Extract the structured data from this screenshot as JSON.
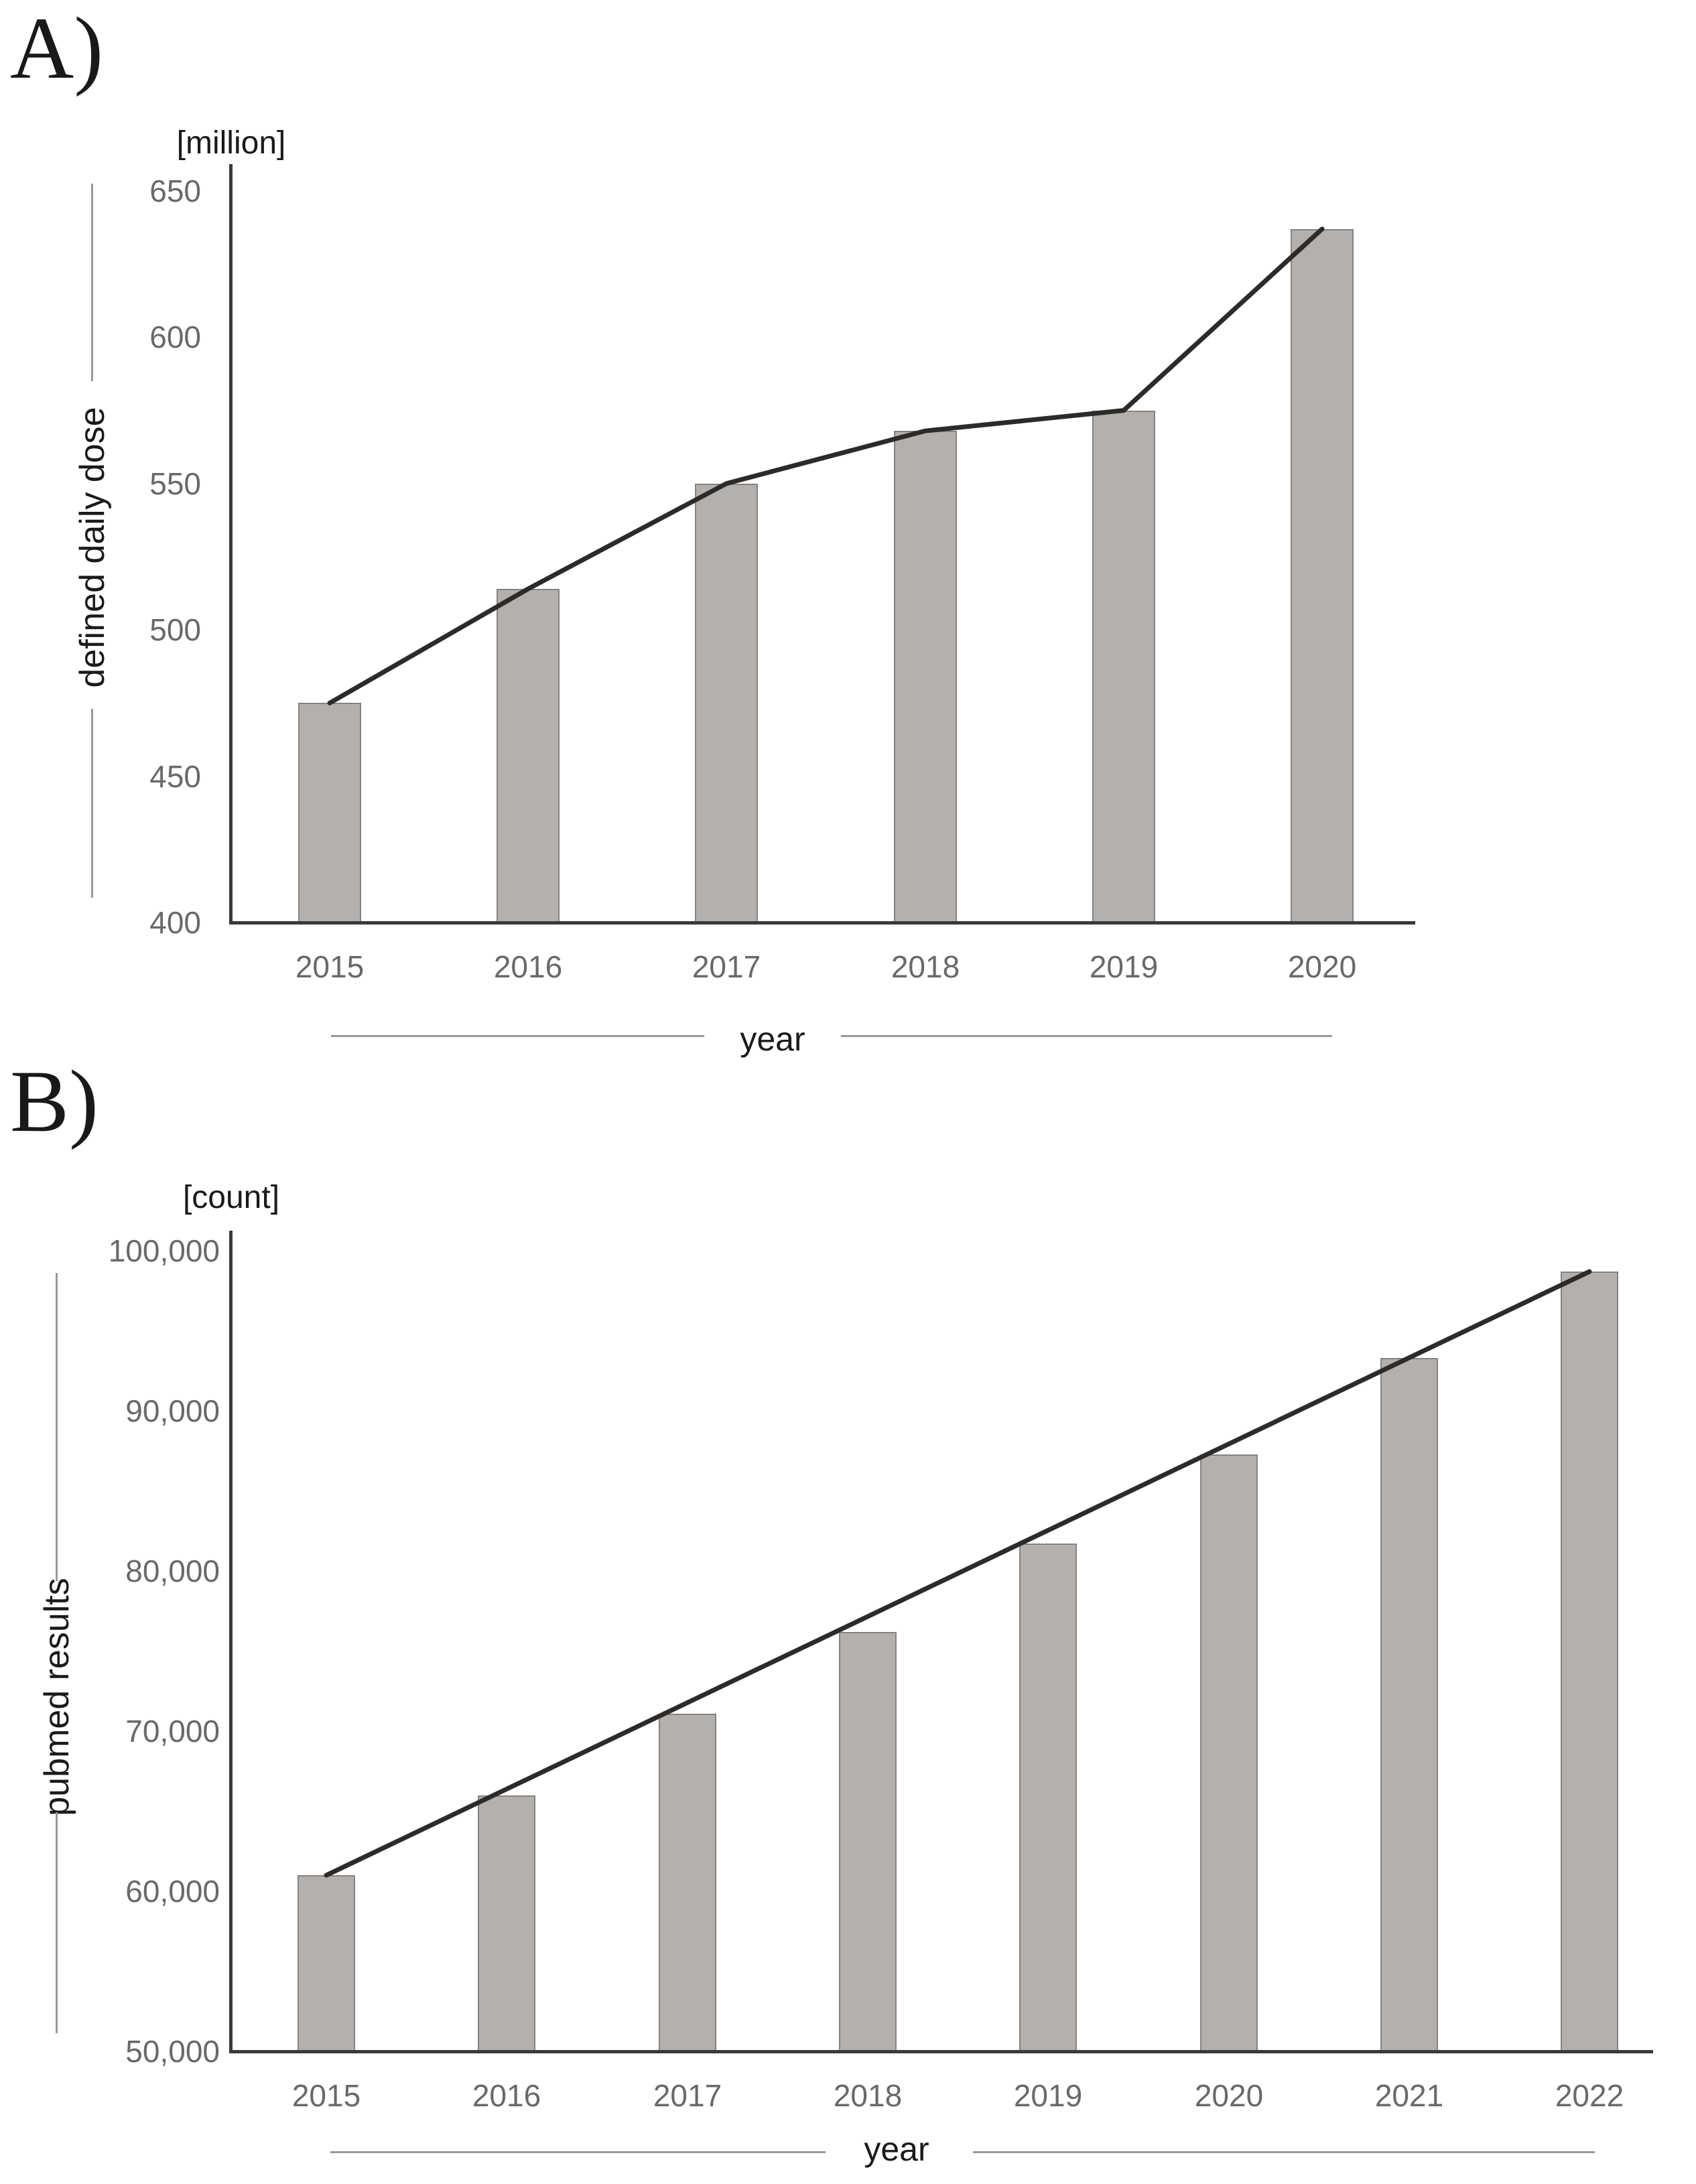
{
  "chart_data": [
    {
      "panel_label": "A)",
      "type": "bar",
      "title": "",
      "unit_label": "[million]",
      "ylabel": "defined daily dose",
      "xlabel": "year",
      "categories": [
        "2015",
        "2016",
        "2017",
        "2018",
        "2019",
        "2020"
      ],
      "series": [
        {
          "name": "defined daily dose bars",
          "values": [
            475,
            514,
            550,
            568,
            575,
            637
          ]
        },
        {
          "name": "trend line",
          "values": [
            475,
            514,
            550,
            568,
            575,
            637
          ]
        }
      ],
      "values": [
        475,
        514,
        550,
        568,
        575,
        637
      ],
      "ylim": [
        400,
        650
      ],
      "yticks": [
        400,
        450,
        500,
        550,
        600,
        650
      ],
      "ytick_labels": [
        "400",
        "450",
        "500",
        "550",
        "600",
        "650"
      ],
      "grid": false,
      "legend_position": "none",
      "trend_style": "polyline-through-points"
    },
    {
      "panel_label": "B)",
      "type": "bar",
      "title": "",
      "unit_label": "[count]",
      "ylabel": "pubmed results",
      "xlabel": "year",
      "categories": [
        "2015",
        "2016",
        "2017",
        "2018",
        "2019",
        "2020",
        "2021",
        "2022"
      ],
      "series": [
        {
          "name": "pubmed results bars",
          "values": [
            61000,
            66000,
            71100,
            76200,
            81700,
            87300,
            93300,
            98700
          ]
        },
        {
          "name": "trend line",
          "values": [
            61000,
            98700
          ]
        }
      ],
      "values": [
        61000,
        66000,
        71100,
        76200,
        81700,
        87300,
        93300,
        98700
      ],
      "ylim": [
        50000,
        100000
      ],
      "yticks": [
        50000,
        60000,
        70000,
        80000,
        90000,
        100000
      ],
      "ytick_labels": [
        "50,000",
        "60,000",
        "70,000",
        "80,000",
        "90,000",
        "100,000"
      ],
      "grid": false,
      "legend_position": "none",
      "trend_style": "straight-first-to-last"
    }
  ],
  "colors": {
    "background": "#ffffff",
    "bar_fill": "#b3b0ae",
    "bar_border": "#85827f",
    "trend_line": "#2d2b29",
    "axis_line": "#3c3a38",
    "tick_label": "#6b6865",
    "axis_title": "#1c1a18",
    "rule_line": "#9b9896"
  }
}
